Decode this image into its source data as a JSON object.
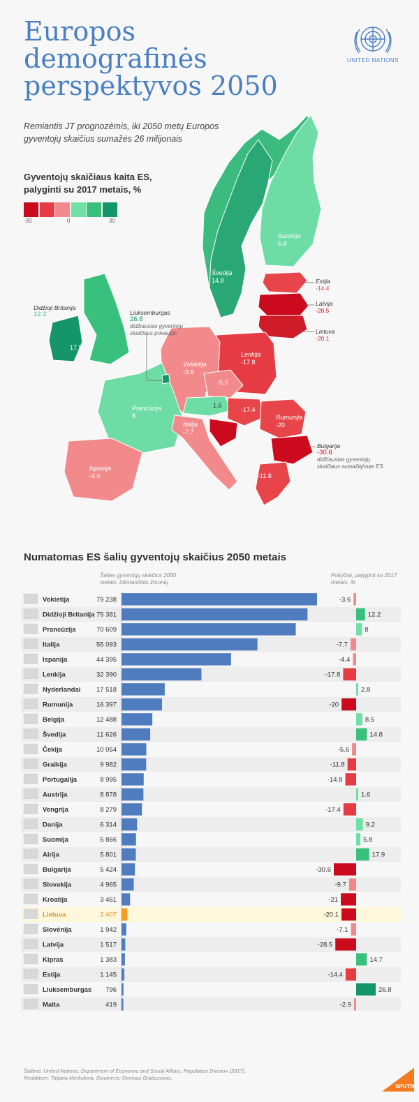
{
  "header": {
    "title": "Europos demografinės perspektyvos 2050",
    "org": "UNITED NATIONS",
    "subtitle": "Remiantis JT prognozėmis, iki 2050 metų Europos gyventojų skaičius sumažės 26 milijonais"
  },
  "legend": {
    "title": "Gyventojų skaičiaus kaita ES, palyginti su 2017 metais, %",
    "min": "-30",
    "mid": "0",
    "max": "30",
    "colors": [
      "#cc0a1e",
      "#e63b42",
      "#f1898c",
      "#6fe0a6",
      "#39c07c",
      "#15956a"
    ]
  },
  "map": {
    "labels": [
      {
        "name": "Švedija",
        "value": "14.8"
      },
      {
        "name": "Suomija",
        "value": "5.8"
      },
      {
        "name": "Estija",
        "value": "-14.4"
      },
      {
        "name": "Latvija",
        "value": "-28.5"
      },
      {
        "name": "Lietuva",
        "value": "-20.1"
      },
      {
        "name": "Didžioji Britanija",
        "value": "12.2"
      },
      {
        "name": "Airija",
        "value": "17.9"
      },
      {
        "name": "Liuksemburgas",
        "value": "26.8"
      },
      {
        "name": "Vokietija",
        "value": "-3.6"
      },
      {
        "name": "Lenkija",
        "value": "-17.8"
      },
      {
        "name": "Čekija",
        "value": "-5.6"
      },
      {
        "name": "Austrija",
        "value": "1.6"
      },
      {
        "name": "Vengrija",
        "value": "-17.4"
      },
      {
        "name": "Prancūzija",
        "value": "8"
      },
      {
        "name": "Italija",
        "value": "-7.7"
      },
      {
        "name": "Rumunija",
        "value": "-20"
      },
      {
        "name": "Bulgarija",
        "value": "-30.6"
      },
      {
        "name": "Ispanija",
        "value": "-4.4"
      },
      {
        "name": "Graikija",
        "value": "-11.8"
      }
    ],
    "lux_note": "didžiausias gyventojų skaičiaus prieaugis",
    "bul_note": "didžiausias gyventojų skaičiaus sumažėjimas ES"
  },
  "bars_section": {
    "title": "Numatomas ES šalių gyventojų skaičius 2050 metais",
    "pop_note": "Šalies gyventojų skaičius 2050 metais, tūkstančiais žmonių",
    "change_note": "Pokyčiai, palyginti su 2017 metais, %"
  },
  "chart_data": {
    "type": "bar",
    "title": "Numatomas ES šalių gyventojų skaičius 2050 metais",
    "categories": [
      "Vokietija",
      "Didžioji Britanija",
      "Prancūzija",
      "Italija",
      "Ispanija",
      "Lenkija",
      "Nyderlandai",
      "Rumunija",
      "Belgija",
      "Švedija",
      "Čekija",
      "Graikija",
      "Portugalija",
      "Austrija",
      "Vengrija",
      "Danija",
      "Suomija",
      "Airija",
      "Bulgarija",
      "Slovakija",
      "Kroatija",
      "Lietuva",
      "Slovėnija",
      "Latvija",
      "Kipras",
      "Estija",
      "Liuksemburgas",
      "Malta"
    ],
    "labels": [
      "79 238",
      "75 381",
      "70 609",
      "55 093",
      "44 395",
      "32 390",
      "17 518",
      "16 397",
      "12 488",
      "11 626",
      "10 054",
      "9 982",
      "8 995",
      "8 878",
      "8 279",
      "6 314",
      "5 866",
      "5 801",
      "5 424",
      "4 965",
      "3 461",
      "2 407",
      "1 942",
      "1 517",
      "1 383",
      "1 145",
      "796",
      "419"
    ],
    "series": [
      {
        "name": "Šalies gyventojų skaičius 2050 metais, tūkstančiais žmonių",
        "values": [
          79238,
          75381,
          70609,
          55093,
          44395,
          32390,
          17518,
          16397,
          12488,
          11626,
          10054,
          9982,
          8995,
          8878,
          8279,
          6314,
          5866,
          5801,
          5424,
          4965,
          3461,
          2407,
          1942,
          1517,
          1383,
          1145,
          796,
          419
        ]
      },
      {
        "name": "Pokyčiai, palyginti su 2017 metais, %",
        "values": [
          -3.6,
          12.2,
          8,
          -7.7,
          -4.4,
          -17.8,
          2.8,
          -20,
          8.5,
          14.8,
          -5.6,
          -11.8,
          -14.8,
          1.6,
          -17.4,
          9.2,
          5.8,
          17.9,
          -30.6,
          -9.7,
          -21,
          -20.1,
          -7.1,
          -28.5,
          14.7,
          -14.4,
          26.8,
          -2.9
        ]
      }
    ],
    "highlight": "Lietuva",
    "colors": {
      "bar": "#4f7cbf",
      "highlight_bar": "#f39c26",
      "highlight_text": "#e8912a",
      "highlight_row": "#fdf8dc"
    }
  },
  "footer": {
    "source": "Šaltinis: United Nations, Department of Economic and Social Affairs, Population Division (2017).",
    "credits": "Redaktorė: Tatjana Merkulova. Dizaineris: Denisas Grabuzovas.",
    "brand": "SPUTNIK"
  }
}
